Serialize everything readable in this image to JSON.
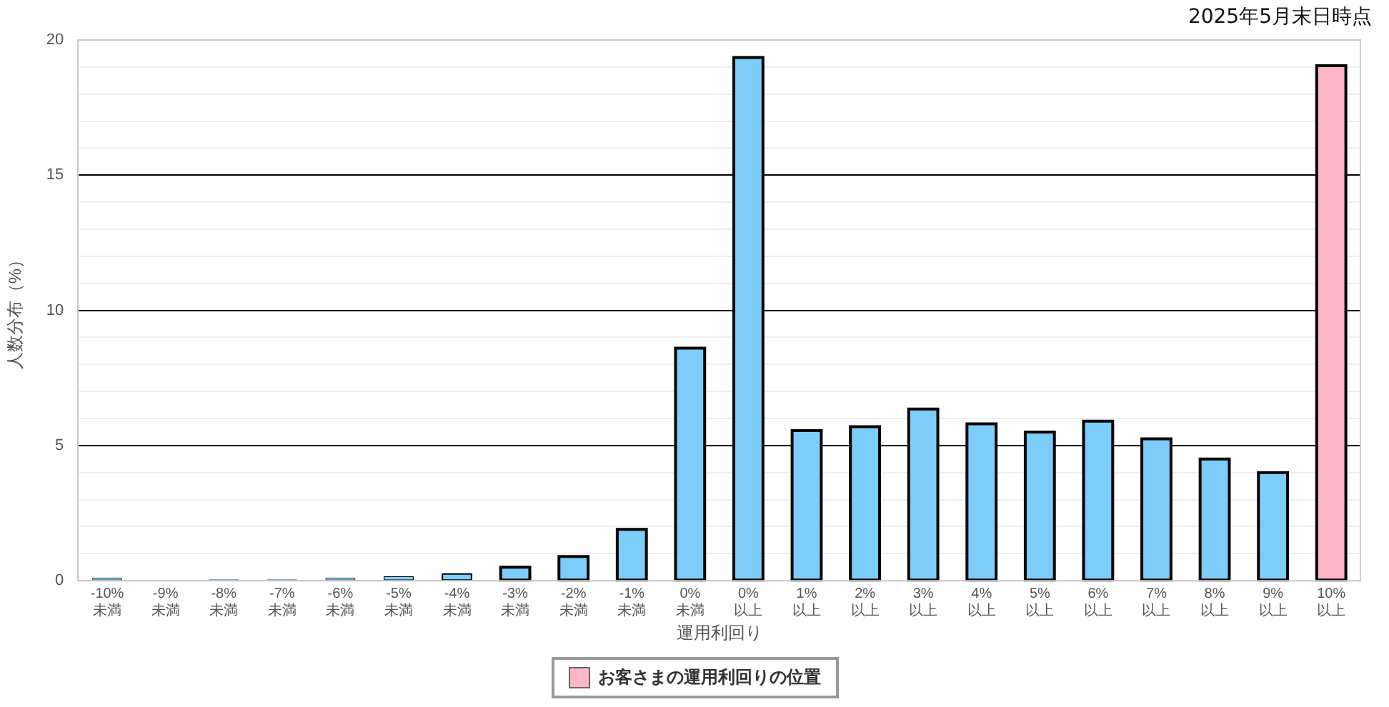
{
  "chart_data": {
    "type": "bar",
    "subtitle": "2025年5月末日時点",
    "xlabel": "運用利回り",
    "ylabel": "人数分布（%）",
    "categories": [
      "-10%\n未満",
      "-9%\n未満",
      "-8%\n未満",
      "-7%\n未満",
      "-6%\n未満",
      "-5%\n未満",
      "-4%\n未満",
      "-3%\n未満",
      "-2%\n未満",
      "-1%\n未満",
      "0%\n未満",
      "0%\n以上",
      "1%\n以上",
      "2%\n以上",
      "3%\n以上",
      "4%\n以上",
      "5%\n以上",
      "6%\n以上",
      "7%\n以上",
      "8%\n以上",
      "9%\n以上",
      "10%\n以上"
    ],
    "series": [
      {
        "color": "#7dcdfb",
        "values": [
          0.1,
          0,
          0.05,
          0.05,
          0.1,
          0.15,
          0.25,
          0.5,
          0.9,
          1.9,
          8.6,
          19.35,
          5.55,
          5.7,
          6.35,
          5.8,
          5.5,
          5.9,
          5.25,
          4.5,
          4.0,
          null
        ]
      },
      {
        "name": "お客さまの運用利回りの位置",
        "color": "#ffb6c8",
        "values": [
          null,
          null,
          null,
          null,
          null,
          null,
          null,
          null,
          null,
          null,
          null,
          null,
          null,
          null,
          null,
          null,
          null,
          null,
          null,
          null,
          null,
          19.05
        ]
      }
    ],
    "ylim": [
      0,
      20
    ],
    "yticks": [
      0,
      {
        "value": 1,
        "label": null
      },
      {
        "value": 2,
        "label": null
      },
      {
        "value": 3,
        "label": null
      },
      {
        "value": 4,
        "label": null
      },
      5,
      {
        "value": 6,
        "label": null
      },
      {
        "value": 7,
        "label": null
      },
      {
        "value": 8,
        "label": null
      },
      {
        "value": 9,
        "label": null
      },
      10,
      {
        "value": 11,
        "label": null
      },
      {
        "value": 12,
        "label": null
      },
      {
        "value": 13,
        "label": null
      },
      {
        "value": 14,
        "label": null
      },
      15,
      {
        "value": 16,
        "label": null
      },
      {
        "value": 17,
        "label": null
      },
      {
        "value": 18,
        "label": null
      },
      {
        "value": 19,
        "label": null
      },
      20
    ],
    "grid": true,
    "legend": "bottom"
  }
}
